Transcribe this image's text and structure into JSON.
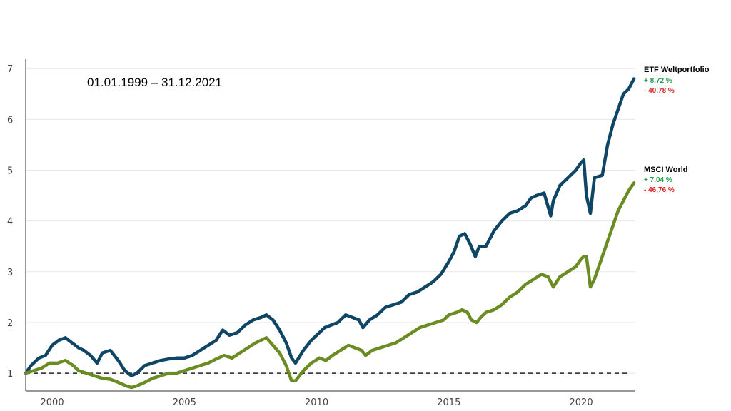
{
  "colors": {
    "etf": "#0f4666",
    "msci": "#6a8c22",
    "positive": "#1f9f4f",
    "negative": "#d42020",
    "grid": "#e8e8e8",
    "axis": "#777777",
    "baseline": "#222222"
  },
  "chart_data": {
    "type": "line",
    "title": "",
    "date_range": "01.01.1999 – 31.12.2021",
    "xlabel": "",
    "ylabel": "",
    "xlim": [
      1999,
      2022.05
    ],
    "ylim": [
      0.65,
      7.2
    ],
    "x_ticks": [
      2000,
      2005,
      2010,
      2015,
      2020
    ],
    "y_ticks": [
      1,
      2,
      3,
      4,
      5,
      6,
      7
    ],
    "reference_line": 1,
    "grid": true,
    "series": [
      {
        "name": "ETF Weltportfolio",
        "key": "etf",
        "annual_return": "+ 8,72 %",
        "max_drawdown": "- 40,78 %",
        "x": [
          1999.0,
          1999.2,
          1999.5,
          1999.75,
          2000.0,
          2000.25,
          2000.5,
          2000.75,
          2001.0,
          2001.2,
          2001.45,
          2001.7,
          2001.9,
          2002.2,
          2002.5,
          2002.75,
          2003.0,
          2003.2,
          2003.5,
          2003.8,
          2004.1,
          2004.4,
          2004.7,
          2005.0,
          2005.3,
          2005.6,
          2005.9,
          2006.2,
          2006.45,
          2006.7,
          2007.0,
          2007.3,
          2007.6,
          2007.9,
          2008.1,
          2008.35,
          2008.6,
          2008.85,
          2009.05,
          2009.2,
          2009.5,
          2009.8,
          2010.1,
          2010.3,
          2010.55,
          2010.8,
          2011.1,
          2011.35,
          2011.6,
          2011.75,
          2012.0,
          2012.3,
          2012.6,
          2012.9,
          2013.2,
          2013.5,
          2013.8,
          2014.1,
          2014.4,
          2014.7,
          2015.0,
          2015.2,
          2015.4,
          2015.6,
          2015.8,
          2016.0,
          2016.15,
          2016.4,
          2016.7,
          2017.0,
          2017.3,
          2017.6,
          2017.9,
          2018.1,
          2018.3,
          2018.6,
          2018.85,
          2018.95,
          2019.2,
          2019.5,
          2019.8,
          2020.0,
          2020.1,
          2020.2,
          2020.35,
          2020.5,
          2020.8,
          2021.0,
          2021.2,
          2021.4,
          2021.6,
          2021.8,
          2022.0
        ],
        "values": [
          1.0,
          1.15,
          1.3,
          1.35,
          1.55,
          1.65,
          1.7,
          1.6,
          1.5,
          1.45,
          1.35,
          1.2,
          1.4,
          1.45,
          1.25,
          1.05,
          0.95,
          1.0,
          1.15,
          1.2,
          1.25,
          1.28,
          1.3,
          1.3,
          1.35,
          1.45,
          1.55,
          1.65,
          1.85,
          1.75,
          1.8,
          1.95,
          2.05,
          2.1,
          2.15,
          2.05,
          1.85,
          1.6,
          1.3,
          1.2,
          1.45,
          1.65,
          1.8,
          1.9,
          1.95,
          2.0,
          2.15,
          2.1,
          2.05,
          1.9,
          2.05,
          2.15,
          2.3,
          2.35,
          2.4,
          2.55,
          2.6,
          2.7,
          2.8,
          2.95,
          3.2,
          3.4,
          3.7,
          3.75,
          3.55,
          3.3,
          3.5,
          3.5,
          3.8,
          4.0,
          4.15,
          4.2,
          4.3,
          4.45,
          4.5,
          4.55,
          4.1,
          4.4,
          4.7,
          4.85,
          5.0,
          5.15,
          5.2,
          4.5,
          4.15,
          4.85,
          4.9,
          5.5,
          5.9,
          6.2,
          6.5,
          6.6,
          6.8
        ]
      },
      {
        "name": "MSCI World",
        "key": "msci",
        "annual_return": "+ 7,04 %",
        "max_drawdown": "- 46,76 %",
        "x": [
          1999.0,
          1999.3,
          1999.6,
          1999.9,
          2000.2,
          2000.5,
          2000.8,
          2001.0,
          2001.3,
          2001.6,
          2001.9,
          2002.2,
          2002.5,
          2002.8,
          2003.0,
          2003.2,
          2003.5,
          2003.8,
          2004.1,
          2004.4,
          2004.7,
          2005.0,
          2005.3,
          2005.6,
          2005.9,
          2006.2,
          2006.5,
          2006.8,
          2007.1,
          2007.4,
          2007.7,
          2007.9,
          2008.1,
          2008.35,
          2008.6,
          2008.85,
          2009.05,
          2009.2,
          2009.5,
          2009.8,
          2010.1,
          2010.35,
          2010.6,
          2010.9,
          2011.2,
          2011.45,
          2011.7,
          2011.85,
          2012.1,
          2012.4,
          2012.7,
          2013.0,
          2013.3,
          2013.6,
          2013.9,
          2014.2,
          2014.5,
          2014.8,
          2015.0,
          2015.3,
          2015.5,
          2015.7,
          2015.85,
          2016.05,
          2016.2,
          2016.4,
          2016.7,
          2017.0,
          2017.3,
          2017.6,
          2017.9,
          2018.2,
          2018.5,
          2018.75,
          2018.95,
          2019.2,
          2019.5,
          2019.8,
          2020.0,
          2020.1,
          2020.2,
          2020.35,
          2020.5,
          2020.8,
          2021.0,
          2021.2,
          2021.4,
          2021.6,
          2021.8,
          2022.0
        ],
        "values": [
          1.0,
          1.05,
          1.1,
          1.2,
          1.2,
          1.25,
          1.15,
          1.05,
          1.0,
          0.95,
          0.9,
          0.88,
          0.82,
          0.75,
          0.72,
          0.75,
          0.82,
          0.9,
          0.95,
          1.0,
          1.0,
          1.05,
          1.1,
          1.15,
          1.2,
          1.28,
          1.35,
          1.3,
          1.4,
          1.5,
          1.6,
          1.65,
          1.7,
          1.55,
          1.4,
          1.15,
          0.85,
          0.85,
          1.05,
          1.2,
          1.3,
          1.25,
          1.35,
          1.45,
          1.55,
          1.5,
          1.45,
          1.35,
          1.45,
          1.5,
          1.55,
          1.6,
          1.7,
          1.8,
          1.9,
          1.95,
          2.0,
          2.05,
          2.15,
          2.2,
          2.25,
          2.2,
          2.05,
          2.0,
          2.1,
          2.2,
          2.25,
          2.35,
          2.5,
          2.6,
          2.75,
          2.85,
          2.95,
          2.9,
          2.7,
          2.9,
          3.0,
          3.1,
          3.25,
          3.3,
          3.3,
          2.7,
          2.85,
          3.3,
          3.6,
          3.9,
          4.2,
          4.4,
          4.6,
          4.75
        ]
      }
    ]
  }
}
